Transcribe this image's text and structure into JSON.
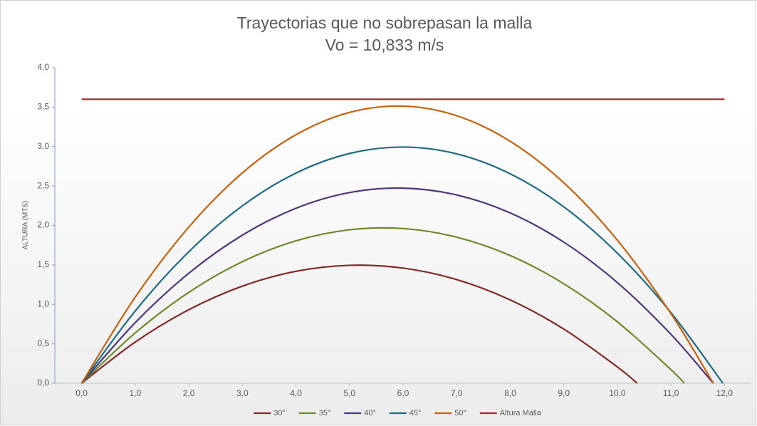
{
  "chart_data": {
    "type": "line",
    "title": "Trayectorias que no sobrepasan la malla",
    "subtitle": "Vo = 10,833 m/s",
    "y_label": "ALTURA (MTS)",
    "xlim": [
      -0.5,
      12.5
    ],
    "ylim": [
      0,
      4
    ],
    "xticks": [
      {
        "value": 0,
        "label": "0,0"
      },
      {
        "value": 1,
        "label": "1,0"
      },
      {
        "value": 2,
        "label": "2,0"
      },
      {
        "value": 3,
        "label": "3,0"
      },
      {
        "value": 4,
        "label": "4,0"
      },
      {
        "value": 5,
        "label": "5,0"
      },
      {
        "value": 6,
        "label": "6,0"
      },
      {
        "value": 7,
        "label": "7,0"
      },
      {
        "value": 8,
        "label": "8,0"
      },
      {
        "value": 9,
        "label": "9,0"
      },
      {
        "value": 10,
        "label": "10,0"
      },
      {
        "value": 11,
        "label": "11,0"
      },
      {
        "value": 12,
        "label": "12,0"
      }
    ],
    "yticks": [
      {
        "value": 0,
        "label": "0,0"
      },
      {
        "value": 0.5,
        "label": "0,5"
      },
      {
        "value": 1,
        "label": "1,0"
      },
      {
        "value": 1.5,
        "label": "1,5"
      },
      {
        "value": 2,
        "label": "2,0"
      },
      {
        "value": 2.5,
        "label": "2,5"
      },
      {
        "value": 3,
        "label": "3,0"
      },
      {
        "value": 3.5,
        "label": "3,5"
      },
      {
        "value": 4,
        "label": "4,0"
      }
    ],
    "legend": "bottom",
    "series": [
      {
        "name": "30°",
        "color": "#7f2b2b",
        "x": [
          0,
          1,
          2,
          3,
          4,
          5,
          6,
          7,
          8,
          9,
          10,
          10.37
        ],
        "values": [
          0,
          0.522,
          0.932,
          1.231,
          1.419,
          1.495,
          1.46,
          1.314,
          1.056,
          0.687,
          0.207,
          0
        ]
      },
      {
        "name": "35°",
        "color": "#6e8a2e",
        "x": [
          0,
          1,
          2,
          3,
          4,
          5,
          6,
          7,
          8,
          9,
          10,
          11,
          11.25
        ],
        "values": [
          0,
          0.638,
          1.152,
          1.541,
          1.805,
          1.945,
          1.961,
          1.852,
          1.619,
          1.261,
          0.779,
          0.172,
          0
        ]
      },
      {
        "name": "40°",
        "color": "#4e3a78",
        "x": [
          0,
          1,
          2,
          3,
          4,
          5,
          6,
          7,
          8,
          9,
          10,
          11,
          11.79
        ],
        "values": [
          0,
          0.768,
          1.394,
          1.877,
          2.218,
          2.417,
          2.473,
          2.387,
          2.159,
          1.789,
          1.276,
          0.621,
          0
        ]
      },
      {
        "name": "45°",
        "color": "#1f6b82",
        "x": [
          0,
          1,
          2,
          3,
          4,
          5,
          6,
          7,
          8,
          9,
          10,
          11,
          11.97
        ],
        "values": [
          0,
          0.916,
          1.666,
          2.248,
          2.664,
          2.912,
          2.994,
          2.908,
          2.655,
          2.236,
          1.649,
          0.895,
          0
        ]
      },
      {
        "name": "50°",
        "color": "#c5620f",
        "x": [
          0,
          1,
          2,
          3,
          4,
          5,
          6,
          7,
          8,
          9,
          10,
          11,
          11.79
        ],
        "values": [
          0,
          1.091,
          1.979,
          2.666,
          3.15,
          3.433,
          3.513,
          3.391,
          3.067,
          2.541,
          1.813,
          0.883,
          0
        ]
      },
      {
        "name": "Altura Malla",
        "color": "#a5282a",
        "x": [
          0,
          12
        ],
        "values": [
          3.6,
          3.6
        ]
      }
    ]
  }
}
